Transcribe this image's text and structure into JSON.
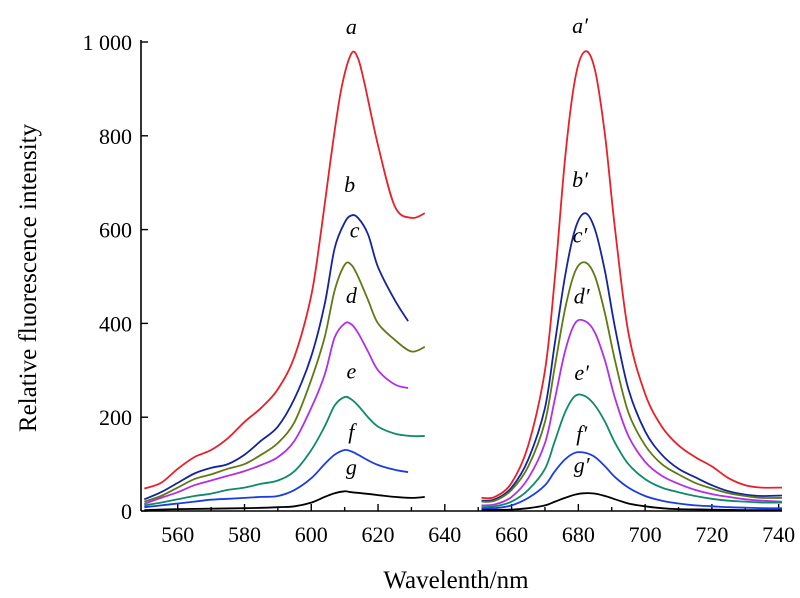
{
  "chart_data": {
    "type": "line",
    "title": "",
    "xlabel": "Wavelenth/nm",
    "ylabel": "Relative fluorescence intensity",
    "xlim": [
      549,
      741
    ],
    "ylim": [
      0,
      1000
    ],
    "x_ticks": [
      560,
      580,
      600,
      620,
      640,
      660,
      680,
      700,
      720,
      740
    ],
    "y_ticks": [
      0,
      200,
      400,
      600,
      800,
      1000
    ],
    "y_tick_labels": [
      "0",
      "200",
      "400",
      "600",
      "800",
      "1 000"
    ],
    "grid": false,
    "legend": "none",
    "series": [
      {
        "name": "a",
        "color": "#e8202a",
        "x": [
          550,
          555,
          560,
          565,
          570,
          575,
          580,
          585,
          590,
          595,
          600,
          603,
          606,
          609,
          612,
          614,
          616,
          620,
          625,
          630,
          634
        ],
        "y": [
          48,
          60,
          90,
          115,
          130,
          155,
          190,
          220,
          260,
          330,
          460,
          600,
          760,
          900,
          975,
          965,
          910,
          780,
          650,
          625,
          635
        ]
      },
      {
        "name": "b",
        "color": "#13259d",
        "x": [
          550,
          555,
          560,
          565,
          570,
          575,
          580,
          585,
          590,
          595,
          600,
          604,
          607,
          610,
          612,
          614,
          617,
          620,
          625,
          629
        ],
        "y": [
          25,
          40,
          60,
          80,
          92,
          100,
          120,
          150,
          180,
          240,
          330,
          440,
          560,
          615,
          630,
          625,
          590,
          520,
          450,
          405
        ]
      },
      {
        "name": "c",
        "color": "#5e7a14",
        "x": [
          550,
          555,
          560,
          565,
          570,
          575,
          580,
          585,
          590,
          595,
          600,
          604,
          607,
          610,
          612,
          614,
          617,
          620,
          625,
          630,
          634
        ],
        "y": [
          20,
          32,
          50,
          68,
          78,
          90,
          100,
          120,
          145,
          190,
          280,
          370,
          470,
          525,
          525,
          500,
          450,
          400,
          365,
          340,
          350
        ]
      },
      {
        "name": "d",
        "color": "#b030e8",
        "x": [
          550,
          555,
          560,
          565,
          570,
          575,
          580,
          585,
          590,
          595,
          600,
          604,
          607,
          610,
          612,
          614,
          617,
          620,
          625,
          629
        ],
        "y": [
          15,
          28,
          40,
          55,
          65,
          75,
          85,
          98,
          115,
          150,
          220,
          290,
          370,
          400,
          398,
          380,
          340,
          300,
          270,
          262
        ]
      },
      {
        "name": "e",
        "color": "#0e8a6a",
        "x": [
          550,
          555,
          560,
          565,
          570,
          575,
          580,
          585,
          590,
          595,
          600,
          604,
          607,
          610,
          612,
          614,
          617,
          620,
          625,
          630,
          634
        ],
        "y": [
          12,
          18,
          25,
          32,
          37,
          45,
          50,
          58,
          65,
          85,
          130,
          180,
          225,
          243,
          238,
          225,
          200,
          180,
          165,
          160,
          160
        ]
      },
      {
        "name": "f",
        "color": "#1a3be8",
        "x": [
          550,
          555,
          560,
          565,
          570,
          575,
          580,
          585,
          590,
          595,
          600,
          604,
          607,
          610,
          612,
          614,
          617,
          620,
          625,
          629
        ],
        "y": [
          8,
          12,
          16,
          20,
          24,
          26,
          28,
          30,
          32,
          45,
          70,
          100,
          120,
          130,
          127,
          120,
          108,
          98,
          88,
          83
        ]
      },
      {
        "name": "g",
        "color": "#000000",
        "x": [
          550,
          560,
          570,
          580,
          590,
          595,
          600,
          604,
          607,
          610,
          612,
          615,
          620,
          625,
          630,
          634
        ],
        "y": [
          2,
          4,
          5,
          6,
          8,
          10,
          18,
          30,
          38,
          42,
          40,
          38,
          34,
          30,
          28,
          30
        ]
      },
      {
        "name": "a′",
        "color": "#e8202a",
        "x": [
          651,
          655,
          660,
          665,
          670,
          673,
          676,
          679,
          682,
          685,
          688,
          691,
          695,
          700,
          705,
          710,
          715,
          720,
          725,
          730,
          735,
          741
        ],
        "y": [
          28,
          30,
          60,
          140,
          300,
          500,
          750,
          920,
          980,
          940,
          800,
          600,
          380,
          250,
          180,
          140,
          115,
          95,
          70,
          55,
          50,
          50
        ]
      },
      {
        "name": "b′",
        "color": "#13259d",
        "x": [
          651,
          655,
          660,
          665,
          670,
          673,
          676,
          679,
          682,
          685,
          688,
          691,
          695,
          700,
          705,
          710,
          715,
          720,
          725,
          730,
          735,
          741
        ],
        "y": [
          22,
          25,
          50,
          110,
          220,
          360,
          500,
          600,
          635,
          600,
          510,
          390,
          260,
          170,
          120,
          90,
          72,
          55,
          42,
          35,
          32,
          33
        ]
      },
      {
        "name": "c′",
        "color": "#5e7a14",
        "x": [
          651,
          655,
          660,
          665,
          670,
          673,
          676,
          679,
          682,
          685,
          688,
          691,
          695,
          700,
          705,
          710,
          715,
          720,
          725,
          730,
          735,
          741
        ],
        "y": [
          20,
          22,
          45,
          95,
          190,
          310,
          430,
          510,
          530,
          500,
          420,
          320,
          210,
          140,
          100,
          78,
          60,
          48,
          38,
          32,
          28,
          28
        ]
      },
      {
        "name": "d′",
        "color": "#b030e8",
        "x": [
          651,
          655,
          660,
          665,
          670,
          673,
          676,
          679,
          682,
          685,
          688,
          691,
          695,
          700,
          705,
          710,
          715,
          720,
          725,
          730,
          735,
          741
        ],
        "y": [
          12,
          14,
          30,
          70,
          145,
          240,
          340,
          400,
          405,
          380,
          320,
          240,
          160,
          105,
          75,
          58,
          45,
          36,
          30,
          25,
          22,
          20
        ]
      },
      {
        "name": "e′",
        "color": "#0e8a6a",
        "x": [
          651,
          655,
          660,
          665,
          670,
          673,
          676,
          679,
          682,
          685,
          688,
          691,
          695,
          700,
          705,
          710,
          715,
          720,
          725,
          730,
          735,
          741
        ],
        "y": [
          8,
          10,
          20,
          45,
          90,
          150,
          210,
          245,
          245,
          225,
          190,
          145,
          100,
          68,
          50,
          40,
          32,
          26,
          22,
          20,
          18,
          18
        ]
      },
      {
        "name": "f′",
        "color": "#1a3be8",
        "x": [
          651,
          655,
          660,
          665,
          670,
          673,
          676,
          679,
          682,
          685,
          688,
          691,
          695,
          700,
          705,
          710,
          715,
          720,
          725,
          730,
          735,
          741
        ],
        "y": [
          5,
          6,
          12,
          28,
          55,
          85,
          110,
          124,
          124,
          115,
          95,
          72,
          50,
          32,
          22,
          16,
          12,
          10,
          8,
          7,
          6,
          6
        ]
      },
      {
        "name": "g′",
        "color": "#000000",
        "x": [
          651,
          660,
          665,
          670,
          673,
          676,
          679,
          682,
          685,
          688,
          691,
          695,
          700,
          705,
          710,
          720,
          730,
          741
        ],
        "y": [
          2,
          3,
          6,
          12,
          20,
          28,
          35,
          38,
          37,
          32,
          25,
          16,
          10,
          6,
          4,
          3,
          2,
          2
        ]
      }
    ],
    "annotations": [
      {
        "text": "a",
        "x": 612,
        "y": 1017
      },
      {
        "text": "b",
        "x": 611.5,
        "y": 680
      },
      {
        "text": "c",
        "x": 613,
        "y": 583
      },
      {
        "text": "d",
        "x": 612,
        "y": 443
      },
      {
        "text": "e",
        "x": 612,
        "y": 282
      },
      {
        "text": "f",
        "x": 612,
        "y": 154
      },
      {
        "text": "g",
        "x": 612,
        "y": 78
      },
      {
        "text": "a′",
        "x": 680.5,
        "y": 1019
      },
      {
        "text": "b′",
        "x": 680.5,
        "y": 691
      },
      {
        "text": "c′",
        "x": 680.5,
        "y": 573
      },
      {
        "text": "d′",
        "x": 681,
        "y": 442
      },
      {
        "text": "e′",
        "x": 681,
        "y": 279
      },
      {
        "text": "f′",
        "x": 681,
        "y": 149
      },
      {
        "text": "g′",
        "x": 681,
        "y": 82
      }
    ]
  }
}
